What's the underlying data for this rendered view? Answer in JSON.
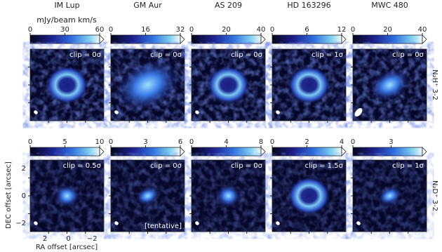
{
  "figure": {
    "columns": [
      "IM Lup",
      "GM Aur",
      "AS 209",
      "HD 163296",
      "MWC 480"
    ],
    "colorbar_unit": "mJy/beam km/s",
    "rows": [
      {
        "label": "N₂H⁺ 3-2",
        "colorbar_ticks": [
          [
            "0",
            "30",
            "60"
          ],
          [
            "0",
            "16",
            "32"
          ],
          [
            "0",
            "20",
            "40"
          ],
          [
            "0",
            "6",
            "12"
          ],
          [
            "0",
            "20",
            "40"
          ]
        ],
        "clip": [
          "clip = 0σ",
          "clip = 0σ",
          "clip = 0σ",
          "clip = 1σ",
          "clip = 0σ"
        ]
      },
      {
        "label": "N₂D⁺ 3-2",
        "colorbar_ticks": [
          [
            "0",
            "5",
            "10"
          ],
          [
            "0",
            "3",
            "6"
          ],
          [
            "0",
            "4",
            "8"
          ],
          [
            "0",
            "2",
            "4"
          ],
          [
            "0",
            "3"
          ]
        ],
        "clip": [
          "clip = 0.5σ",
          "clip = 0σ",
          "clip = 0σ",
          "clip = 1.5σ",
          "clip = 1σ"
        ]
      }
    ],
    "note": "[tentative]",
    "y_axis": {
      "label": "DEC offset [arcsec]",
      "ticks": [
        "2",
        "0",
        "−2"
      ]
    },
    "x_axis": {
      "label": "RA offset [arcsec]",
      "ticks": [
        "2",
        "0",
        "−2"
      ]
    }
  }
}
